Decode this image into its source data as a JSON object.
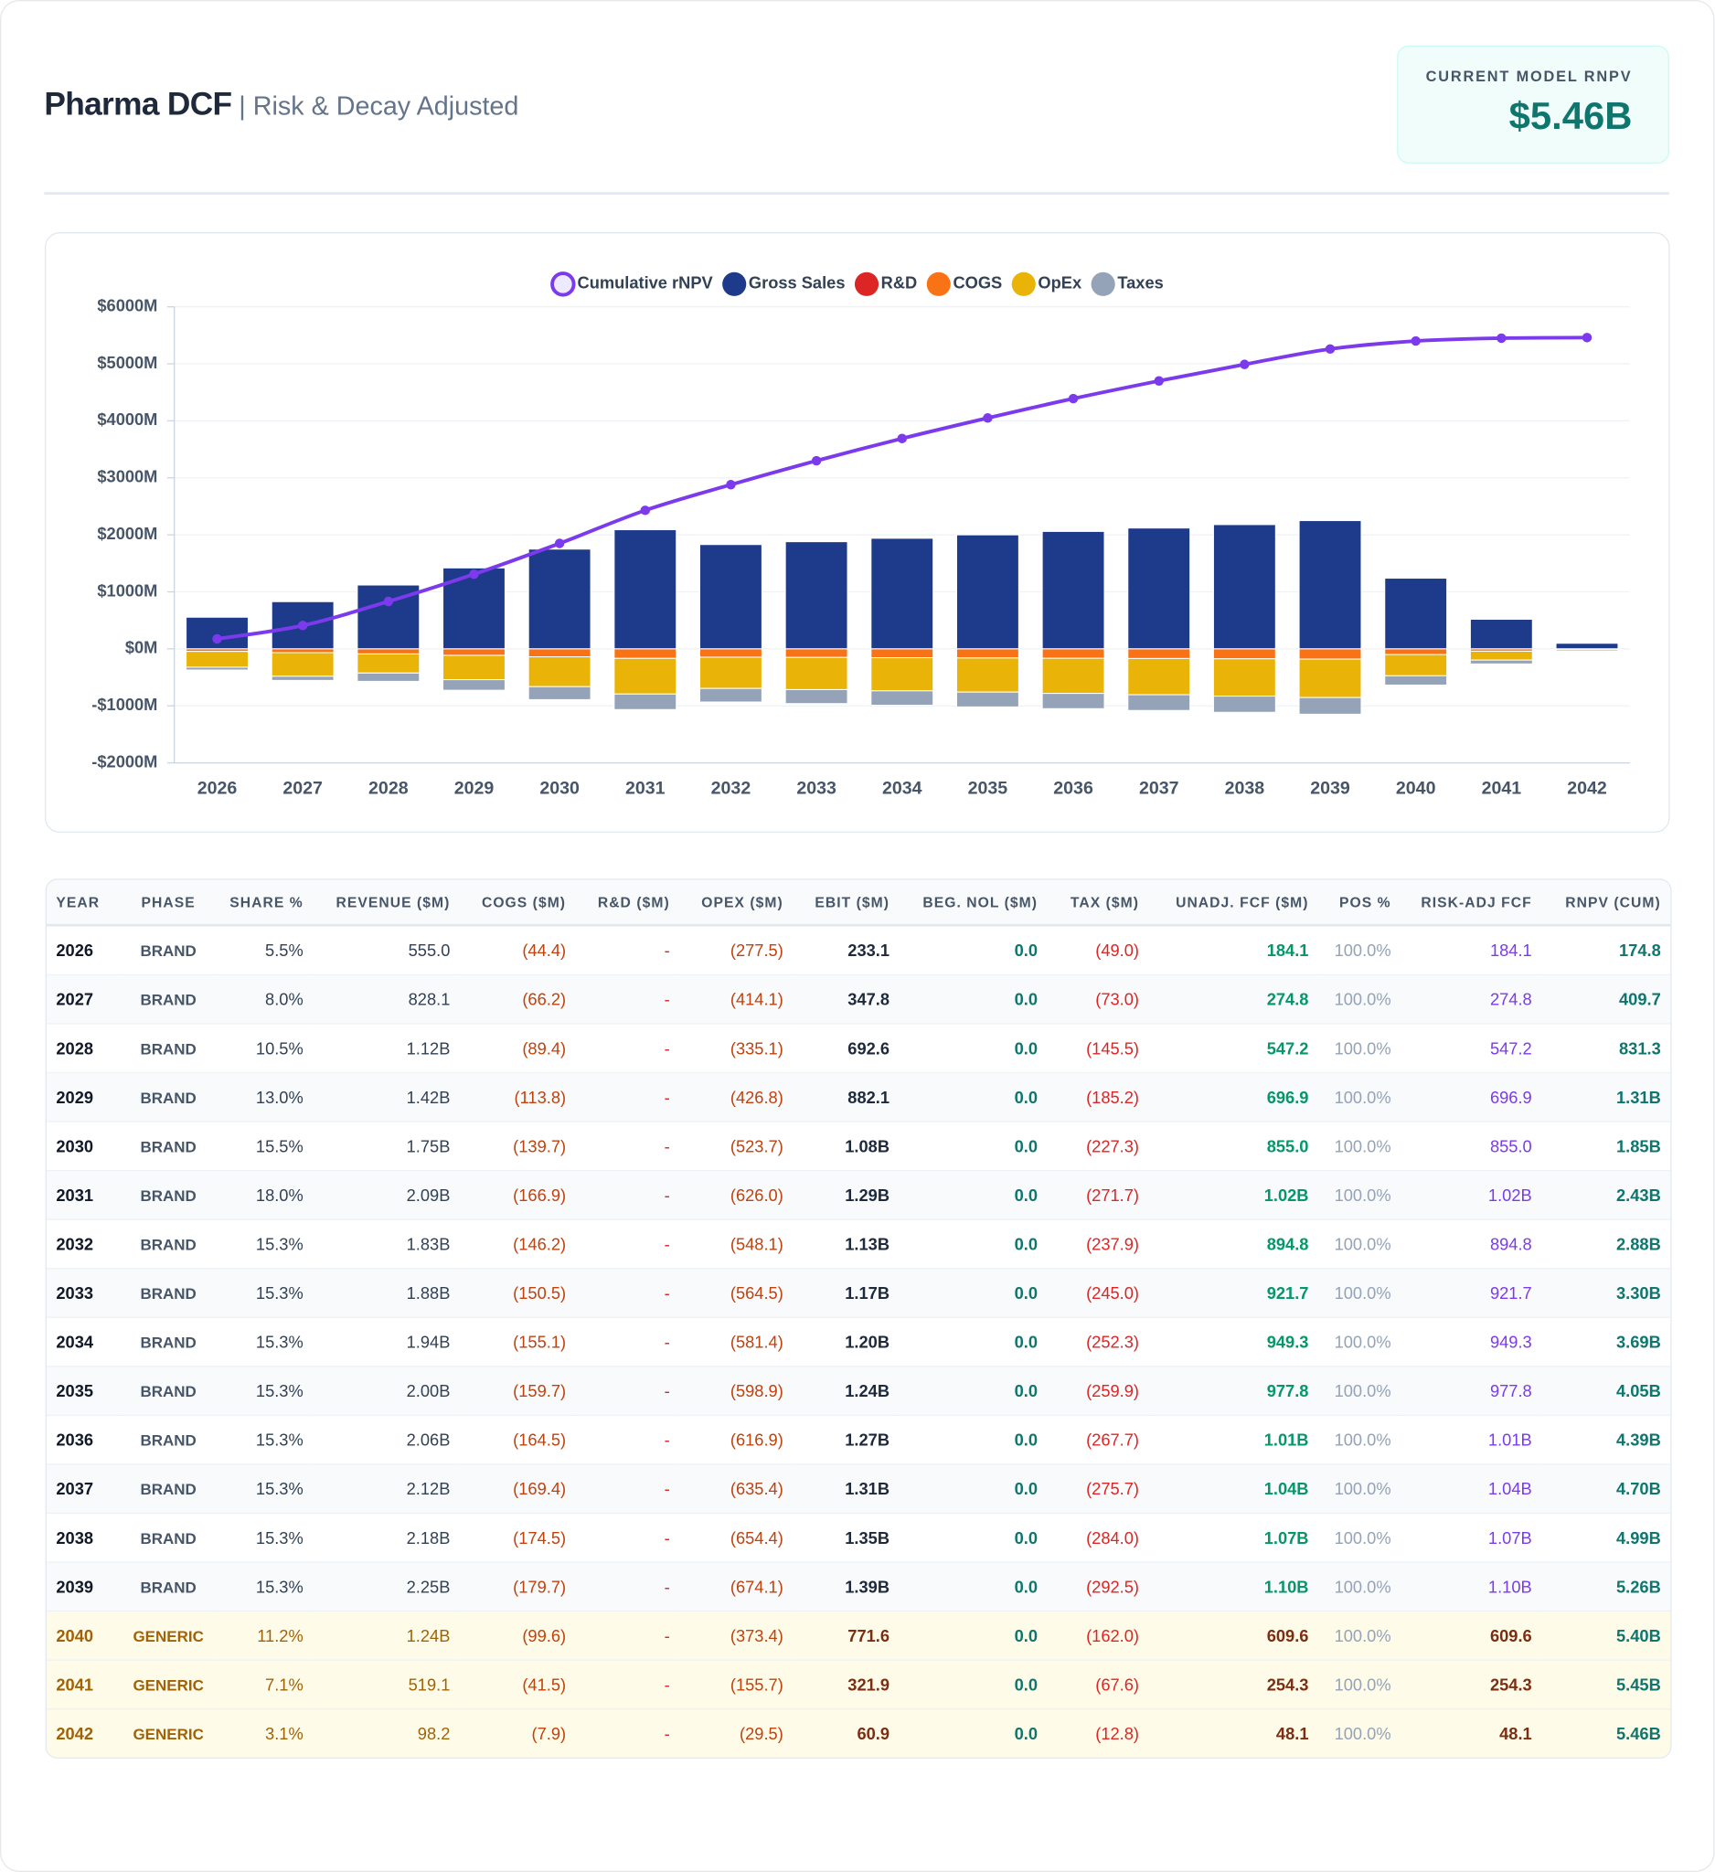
{
  "header": {
    "title": "Pharma DCF",
    "subtitle": "| Risk & Decay Adjusted"
  },
  "kpi": {
    "label": "CURRENT MODEL RNPV",
    "value": "$5.46B"
  },
  "chart_data": {
    "type": "bar",
    "categories": [
      "2026",
      "2027",
      "2028",
      "2029",
      "2030",
      "2031",
      "2032",
      "2033",
      "2034",
      "2035",
      "2036",
      "2037",
      "2038",
      "2039",
      "2040",
      "2041",
      "2042"
    ],
    "series": [
      {
        "name": "Cumulative rNPV",
        "type": "line",
        "color": "#7c3aed",
        "values": [
          174.8,
          409.7,
          831.3,
          1310,
          1850,
          2430,
          2880,
          3300,
          3690,
          4050,
          4390,
          4700,
          4990,
          5260,
          5400,
          5450,
          5460
        ]
      },
      {
        "name": "Gross Sales",
        "color": "#1e3a8a",
        "values": [
          555.0,
          828.1,
          1120,
          1420,
          1750,
          2090,
          1830,
          1880,
          1940,
          2000,
          2060,
          2120,
          2180,
          2250,
          1240,
          519.1,
          98.2
        ]
      },
      {
        "name": "R&D",
        "color": "#dc2626",
        "values": [
          0,
          0,
          0,
          0,
          0,
          0,
          0,
          0,
          0,
          0,
          0,
          0,
          0,
          0,
          0,
          0,
          0
        ]
      },
      {
        "name": "COGS",
        "color": "#f97316",
        "values": [
          -44.4,
          -66.2,
          -89.4,
          -113.8,
          -139.7,
          -166.9,
          -146.2,
          -150.5,
          -155.1,
          -159.7,
          -164.5,
          -169.4,
          -174.5,
          -179.7,
          -99.6,
          -41.5,
          -7.9
        ]
      },
      {
        "name": "OpEx",
        "color": "#eab308",
        "values": [
          -277.5,
          -414.1,
          -335.1,
          -426.8,
          -523.7,
          -626.0,
          -548.1,
          -564.5,
          -581.4,
          -598.9,
          -616.9,
          -635.4,
          -654.4,
          -674.1,
          -373.4,
          -155.7,
          -29.5
        ]
      },
      {
        "name": "Taxes",
        "color": "#94a3b8",
        "values": [
          -49.0,
          -73.0,
          -145.5,
          -185.2,
          -227.3,
          -271.7,
          -237.9,
          -245.0,
          -252.3,
          -259.9,
          -267.7,
          -275.7,
          -284.0,
          -292.5,
          -162.0,
          -67.6,
          -12.8
        ]
      }
    ],
    "ylim": [
      -2000,
      6000
    ],
    "yticks": [
      {
        "value": -2000,
        "label": "-$2000M"
      },
      {
        "value": -1000,
        "label": "-$1000M"
      },
      {
        "value": 0,
        "label": "$0M"
      },
      {
        "value": 1000,
        "label": "$1000M"
      },
      {
        "value": 2000,
        "label": "$2000M"
      },
      {
        "value": 3000,
        "label": "$3000M"
      },
      {
        "value": 4000,
        "label": "$4000M"
      },
      {
        "value": 5000,
        "label": "$5000M"
      },
      {
        "value": 6000,
        "label": "$6000M"
      }
    ],
    "grid": true,
    "legend": "top"
  },
  "table": {
    "columns": [
      "YEAR",
      "PHASE",
      "SHARE %",
      "REVENUE ($M)",
      "COGS ($M)",
      "R&D ($M)",
      "OPEX ($M)",
      "EBIT ($M)",
      "BEG. NOL ($M)",
      "TAX ($M)",
      "UNADJ. FCF ($M)",
      "POS %",
      "RISK-ADJ FCF",
      "RNPV (CUM)"
    ],
    "rows": [
      [
        "2026",
        "BRAND",
        "5.5%",
        "555.0",
        "(44.4)",
        "-",
        "(277.5)",
        "233.1",
        "0.0",
        "(49.0)",
        "184.1",
        "100.0%",
        "184.1",
        "174.8"
      ],
      [
        "2027",
        "BRAND",
        "8.0%",
        "828.1",
        "(66.2)",
        "-",
        "(414.1)",
        "347.8",
        "0.0",
        "(73.0)",
        "274.8",
        "100.0%",
        "274.8",
        "409.7"
      ],
      [
        "2028",
        "BRAND",
        "10.5%",
        "1.12B",
        "(89.4)",
        "-",
        "(335.1)",
        "692.6",
        "0.0",
        "(145.5)",
        "547.2",
        "100.0%",
        "547.2",
        "831.3"
      ],
      [
        "2029",
        "BRAND",
        "13.0%",
        "1.42B",
        "(113.8)",
        "-",
        "(426.8)",
        "882.1",
        "0.0",
        "(185.2)",
        "696.9",
        "100.0%",
        "696.9",
        "1.31B"
      ],
      [
        "2030",
        "BRAND",
        "15.5%",
        "1.75B",
        "(139.7)",
        "-",
        "(523.7)",
        "1.08B",
        "0.0",
        "(227.3)",
        "855.0",
        "100.0%",
        "855.0",
        "1.85B"
      ],
      [
        "2031",
        "BRAND",
        "18.0%",
        "2.09B",
        "(166.9)",
        "-",
        "(626.0)",
        "1.29B",
        "0.0",
        "(271.7)",
        "1.02B",
        "100.0%",
        "1.02B",
        "2.43B"
      ],
      [
        "2032",
        "BRAND",
        "15.3%",
        "1.83B",
        "(146.2)",
        "-",
        "(548.1)",
        "1.13B",
        "0.0",
        "(237.9)",
        "894.8",
        "100.0%",
        "894.8",
        "2.88B"
      ],
      [
        "2033",
        "BRAND",
        "15.3%",
        "1.88B",
        "(150.5)",
        "-",
        "(564.5)",
        "1.17B",
        "0.0",
        "(245.0)",
        "921.7",
        "100.0%",
        "921.7",
        "3.30B"
      ],
      [
        "2034",
        "BRAND",
        "15.3%",
        "1.94B",
        "(155.1)",
        "-",
        "(581.4)",
        "1.20B",
        "0.0",
        "(252.3)",
        "949.3",
        "100.0%",
        "949.3",
        "3.69B"
      ],
      [
        "2035",
        "BRAND",
        "15.3%",
        "2.00B",
        "(159.7)",
        "-",
        "(598.9)",
        "1.24B",
        "0.0",
        "(259.9)",
        "977.8",
        "100.0%",
        "977.8",
        "4.05B"
      ],
      [
        "2036",
        "BRAND",
        "15.3%",
        "2.06B",
        "(164.5)",
        "-",
        "(616.9)",
        "1.27B",
        "0.0",
        "(267.7)",
        "1.01B",
        "100.0%",
        "1.01B",
        "4.39B"
      ],
      [
        "2037",
        "BRAND",
        "15.3%",
        "2.12B",
        "(169.4)",
        "-",
        "(635.4)",
        "1.31B",
        "0.0",
        "(275.7)",
        "1.04B",
        "100.0%",
        "1.04B",
        "4.70B"
      ],
      [
        "2038",
        "BRAND",
        "15.3%",
        "2.18B",
        "(174.5)",
        "-",
        "(654.4)",
        "1.35B",
        "0.0",
        "(284.0)",
        "1.07B",
        "100.0%",
        "1.07B",
        "4.99B"
      ],
      [
        "2039",
        "BRAND",
        "15.3%",
        "2.25B",
        "(179.7)",
        "-",
        "(674.1)",
        "1.39B",
        "0.0",
        "(292.5)",
        "1.10B",
        "100.0%",
        "1.10B",
        "5.26B"
      ],
      [
        "2040",
        "GENERIC",
        "11.2%",
        "1.24B",
        "(99.6)",
        "-",
        "(373.4)",
        "771.6",
        "0.0",
        "(162.0)",
        "609.6",
        "100.0%",
        "609.6",
        "5.40B"
      ],
      [
        "2041",
        "GENERIC",
        "7.1%",
        "519.1",
        "(41.5)",
        "-",
        "(155.7)",
        "321.9",
        "0.0",
        "(67.6)",
        "254.3",
        "100.0%",
        "254.3",
        "5.45B"
      ],
      [
        "2042",
        "GENERIC",
        "3.1%",
        "98.2",
        "(7.9)",
        "-",
        "(29.5)",
        "60.9",
        "0.0",
        "(12.8)",
        "48.1",
        "100.0%",
        "48.1",
        "5.46B"
      ]
    ]
  }
}
